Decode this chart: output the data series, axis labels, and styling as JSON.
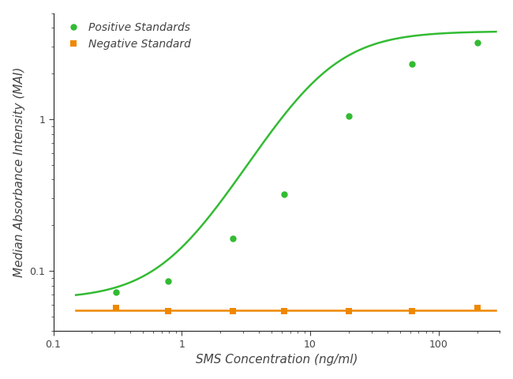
{
  "positive_x": [
    0.31,
    0.78,
    2.5,
    6.25,
    20,
    62.5,
    200
  ],
  "positive_y": [
    0.072,
    0.085,
    0.163,
    0.32,
    1.05,
    2.3,
    3.2
  ],
  "negative_x": [
    0.31,
    0.78,
    2.5,
    6.25,
    20,
    62.5,
    200
  ],
  "negative_y": [
    0.057,
    0.054,
    0.054,
    0.054,
    0.054,
    0.054,
    0.057
  ],
  "positive_color": "#33bb33",
  "negative_color": "#ee8800",
  "positive_label": "Positive Standards",
  "negative_label": "Negative Standard",
  "xlabel": "SMS Concentration (ng/ml)",
  "ylabel": "Median Absorbance Intensity (MAI)",
  "xlim": [
    0.1,
    300
  ],
  "ylim": [
    0.04,
    5.0
  ],
  "bg_color": "#ffffff",
  "marker_size": 6,
  "line_width": 1.8,
  "legend_fontsize": 10,
  "axis_label_fontsize": 11,
  "tick_fontsize": 9,
  "4pl_A": 0.065,
  "4pl_B": 1.55,
  "4pl_C": 12.0,
  "4pl_D": 3.8
}
